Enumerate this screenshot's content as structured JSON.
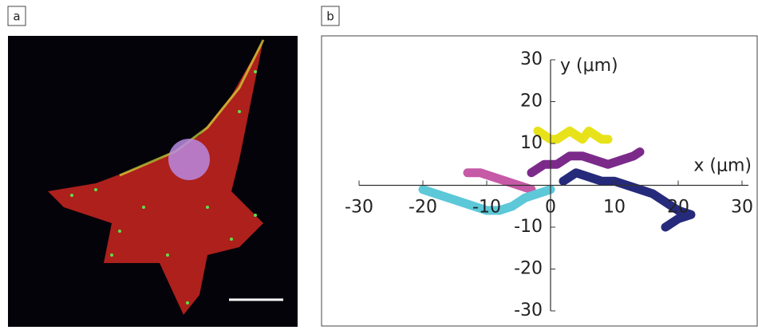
{
  "panel_labels": [
    "a",
    "b"
  ],
  "chart_data": {
    "type": "trajectory",
    "x_label": "x (μm)",
    "y_label": "y (μm)",
    "xlim": [
      -30,
      31
    ],
    "ylim": [
      -30,
      30
    ],
    "xticks": [
      -30,
      -20,
      -10,
      0,
      10,
      20,
      30
    ],
    "yticks": [
      -30,
      -20,
      -10,
      10,
      20,
      30
    ],
    "series": [
      {
        "color": "#e8e21a",
        "x": [
          -2,
          -1,
          0,
          1,
          2,
          3,
          4,
          5,
          6,
          7,
          8,
          9
        ],
        "values": [
          13,
          12,
          11,
          11,
          12,
          13,
          12,
          11,
          13,
          12,
          11,
          11
        ]
      },
      {
        "color": "#7b2a8a",
        "x": [
          -3,
          -1,
          1,
          3,
          5,
          7,
          9,
          11,
          13,
          14
        ],
        "values": [
          3,
          5,
          5,
          7,
          7,
          6,
          5,
          6,
          7,
          8
        ]
      },
      {
        "color": "#c65aa6",
        "x": [
          -13,
          -11,
          -9,
          -7,
          -5,
          -3
        ],
        "values": [
          3,
          3,
          2,
          1,
          0,
          -1
        ]
      },
      {
        "color": "#5cc8d8",
        "x": [
          -20,
          -18,
          -16,
          -14,
          -12,
          -10,
          -8,
          -6,
          -4,
          -2,
          0
        ],
        "values": [
          -1,
          -2,
          -3,
          -4,
          -5,
          -6,
          -6,
          -5,
          -3,
          -2,
          -1
        ]
      },
      {
        "color": "#262a7a",
        "x": [
          2,
          4,
          6,
          8,
          10,
          12,
          14,
          16,
          18,
          20,
          22,
          20,
          18
        ],
        "values": [
          1,
          3,
          2,
          1,
          1,
          0,
          -1,
          -2,
          -4,
          -6,
          -7,
          -8,
          -10
        ]
      }
    ]
  }
}
